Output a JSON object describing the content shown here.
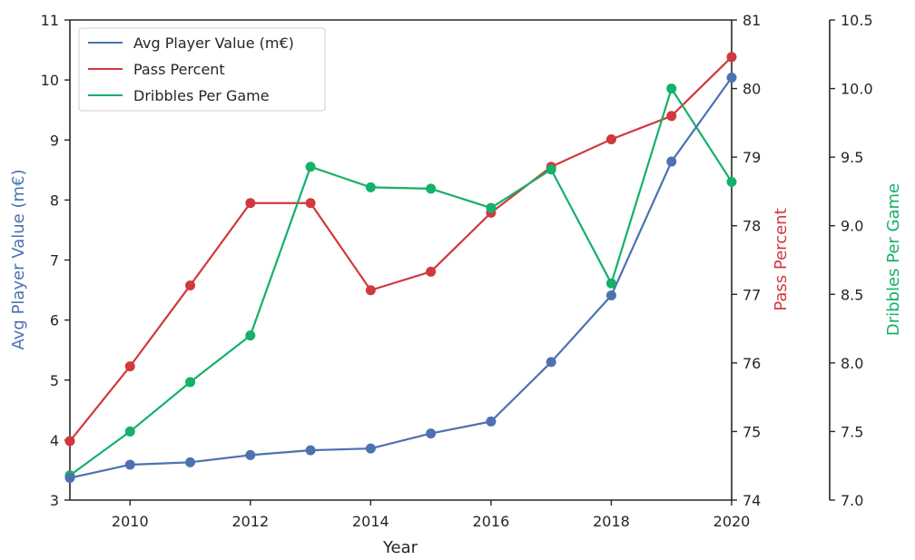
{
  "chart_data": {
    "type": "line",
    "xlabel": "Year",
    "x": [
      2009,
      2010,
      2011,
      2012,
      2013,
      2014,
      2015,
      2016,
      2017,
      2018,
      2019,
      2020
    ],
    "xlim": [
      2009,
      2020
    ],
    "xticks": [
      "2010",
      "2012",
      "2014",
      "2016",
      "2018",
      "2020"
    ],
    "grid": false,
    "legend": "top-left",
    "series": [
      {
        "name": "Avg Player Value (m€)",
        "axis": "left",
        "color": "#4c72b0",
        "values": [
          3.37,
          3.59,
          3.63,
          3.75,
          3.83,
          3.86,
          4.11,
          4.31,
          5.3,
          6.41,
          8.64,
          10.04
        ],
        "ylim": [
          3,
          11
        ],
        "ylabel": "Avg Player Value (m€)",
        "ticks": [
          "3",
          "4",
          "5",
          "6",
          "7",
          "8",
          "9",
          "10",
          "11"
        ]
      },
      {
        "name": "Pass Percent",
        "axis": "right",
        "color": "#d0393e",
        "values": [
          74.86,
          75.95,
          77.13,
          78.33,
          78.33,
          77.06,
          77.33,
          78.19,
          78.86,
          79.26,
          79.6,
          80.46
        ],
        "ylim": [
          74,
          81
        ],
        "ylabel": "Pass Percent",
        "ticks": [
          "74",
          "75",
          "76",
          "77",
          "78",
          "79",
          "80",
          "81"
        ]
      },
      {
        "name": "Dribbles Per Game",
        "axis": "right-offset",
        "color": "#15b06a",
        "values": [
          7.18,
          7.5,
          7.86,
          8.2,
          9.43,
          9.28,
          9.27,
          9.13,
          9.41,
          8.58,
          10.0,
          9.32
        ],
        "ylim": [
          7.0,
          10.5
        ],
        "ylabel": "Dribbles Per Game",
        "ticks": [
          "7.0",
          "7.5",
          "8.0",
          "8.5",
          "9.0",
          "9.5",
          "10.0",
          "10.5"
        ]
      }
    ]
  }
}
